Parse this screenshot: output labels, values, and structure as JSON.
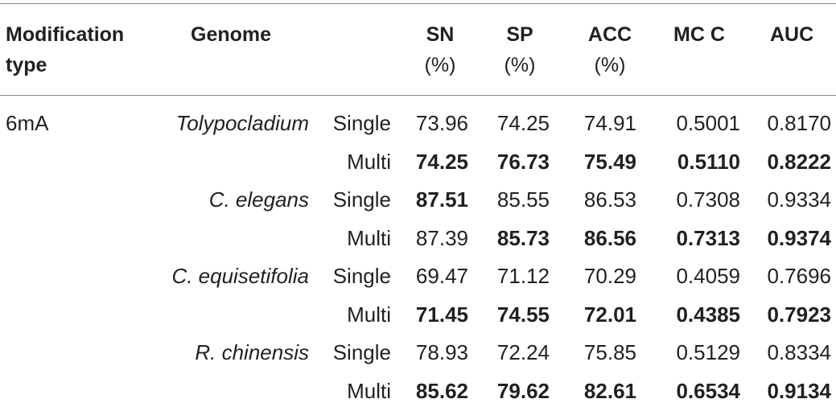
{
  "table": {
    "headers": {
      "mod_type_line1": "Modification",
      "mod_type_line2": "type",
      "genome": "Genome",
      "sn_line1": "SN",
      "sn_line2": "(%)",
      "sp_line1": "SP",
      "sp_line2": "(%)",
      "acc_line1": "ACC",
      "acc_line2": "(%)",
      "mcc": "MC C",
      "auc": "AUC"
    },
    "modification_type": "6mA",
    "rows": [
      {
        "genome": "Tolypocladium",
        "mode": "Single",
        "sn": "73.96",
        "sp": "74.25",
        "acc": "74.91",
        "mcc": "0.5001",
        "auc": "0.8170",
        "bold": {
          "sn": false,
          "sp": false,
          "acc": false,
          "mcc": false,
          "auc": false
        }
      },
      {
        "genome": "",
        "mode": "Multi",
        "sn": "74.25",
        "sp": "76.73",
        "acc": "75.49",
        "mcc": "0.5110",
        "auc": "0.8222",
        "bold": {
          "sn": true,
          "sp": true,
          "acc": true,
          "mcc": true,
          "auc": true
        }
      },
      {
        "genome": "C. elegans",
        "mode": "Single",
        "sn": "87.51",
        "sp": "85.55",
        "acc": "86.53",
        "mcc": "0.7308",
        "auc": "0.9334",
        "bold": {
          "sn": true,
          "sp": false,
          "acc": false,
          "mcc": false,
          "auc": false
        }
      },
      {
        "genome": "",
        "mode": "Multi",
        "sn": "87.39",
        "sp": "85.73",
        "acc": "86.56",
        "mcc": "0.7313",
        "auc": "0.9374",
        "bold": {
          "sn": false,
          "sp": true,
          "acc": true,
          "mcc": true,
          "auc": true
        }
      },
      {
        "genome": "C. equisetifolia",
        "mode": "Single",
        "sn": "69.47",
        "sp": "71.12",
        "acc": "70.29",
        "mcc": "0.4059",
        "auc": "0.7696",
        "bold": {
          "sn": false,
          "sp": false,
          "acc": false,
          "mcc": false,
          "auc": false
        }
      },
      {
        "genome": "",
        "mode": "Multi",
        "sn": "71.45",
        "sp": "74.55",
        "acc": "72.01",
        "mcc": "0.4385",
        "auc": "0.7923",
        "bold": {
          "sn": true,
          "sp": true,
          "acc": true,
          "mcc": true,
          "auc": true
        }
      },
      {
        "genome": "R. chinensis",
        "mode": "Single",
        "sn": "78.93",
        "sp": "72.24",
        "acc": "75.85",
        "mcc": "0.5129",
        "auc": "0.8334",
        "bold": {
          "sn": false,
          "sp": false,
          "acc": false,
          "mcc": false,
          "auc": false
        }
      },
      {
        "genome": "",
        "mode": "Multi",
        "sn": "85.62",
        "sp": "79.62",
        "acc": "82.61",
        "mcc": "0.6534",
        "auc": "0.9134",
        "bold": {
          "sn": true,
          "sp": true,
          "acc": true,
          "mcc": true,
          "auc": true
        }
      }
    ]
  }
}
